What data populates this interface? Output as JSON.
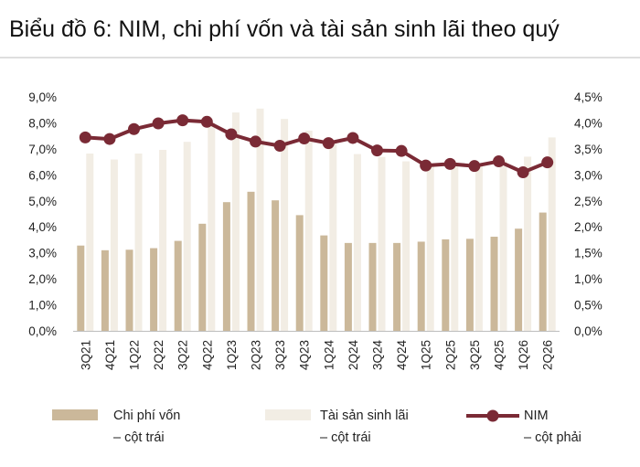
{
  "title": "Biểu đồ 6:  NIM, chi phí vốn và tài sản sinh lãi theo quý",
  "chart_data": {
    "type": "bar+line",
    "categories": [
      "3Q21",
      "4Q21",
      "1Q22",
      "2Q22",
      "3Q22",
      "4Q22",
      "1Q23",
      "2Q23",
      "3Q23",
      "4Q23",
      "1Q24",
      "2Q24",
      "3Q24",
      "4Q24",
      "1Q25",
      "2Q25",
      "3Q25",
      "4Q25",
      "1Q26",
      "2Q26"
    ],
    "y_left": {
      "ticks": [
        "9,0%",
        "8,0%",
        "7,0%",
        "6,0%",
        "5,0%",
        "4,0%",
        "3,0%",
        "2,0%",
        "1,0%",
        "0,0%"
      ],
      "ylim": [
        0,
        9
      ]
    },
    "y_right": {
      "ticks": [
        "4,5%",
        "4,0%",
        "3,5%",
        "3,0%",
        "2,5%",
        "2,0%",
        "1,5%",
        "1,0%",
        "0,5%",
        "0,0%"
      ],
      "ylim": [
        0,
        4.5
      ]
    },
    "series": [
      {
        "name": "Chi phí vốn",
        "name_line2": "– cột trái",
        "type": "bar",
        "axis": "left",
        "color": "#cbb89a",
        "values": [
          3.28,
          3.1,
          3.12,
          3.18,
          3.46,
          4.12,
          4.95,
          5.35,
          5.02,
          4.45,
          3.67,
          3.38,
          3.38,
          3.38,
          3.43,
          3.52,
          3.54,
          3.62,
          3.93,
          4.55
        ]
      },
      {
        "name": "Tài sản sinh lãi",
        "name_line2": "– cột trái",
        "type": "bar",
        "axis": "left",
        "color": "#f2ede4",
        "values": [
          6.82,
          6.59,
          6.82,
          6.96,
          7.27,
          8.0,
          8.4,
          8.55,
          8.15,
          7.7,
          7.28,
          6.8,
          6.69,
          6.52,
          6.4,
          6.4,
          6.38,
          6.55,
          6.7,
          7.44
        ]
      },
      {
        "name": "NIM",
        "name_line2": "– cột phải",
        "type": "line",
        "axis": "right",
        "color": "#7a2a35",
        "values": [
          3.72,
          3.69,
          3.88,
          3.99,
          4.05,
          4.02,
          3.78,
          3.64,
          3.56,
          3.7,
          3.61,
          3.71,
          3.47,
          3.46,
          3.18,
          3.21,
          3.17,
          3.26,
          3.05,
          3.24
        ]
      }
    ],
    "grid": false,
    "legend_position": "bottom"
  }
}
